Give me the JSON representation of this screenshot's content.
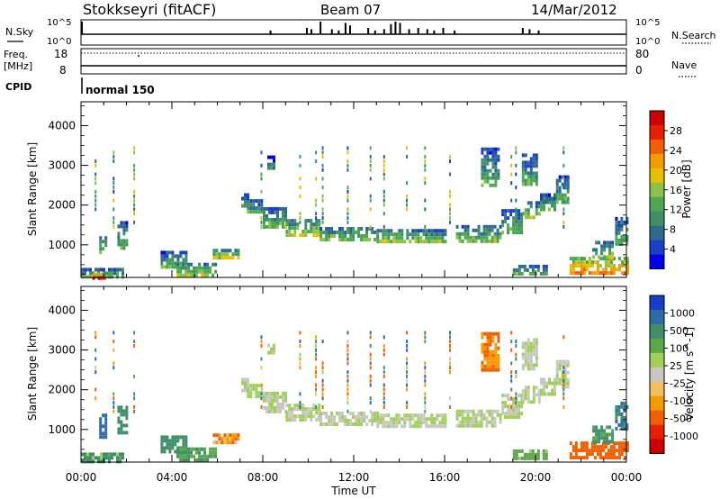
{
  "header": {
    "title": "Stokkseyri (fitACF)",
    "beam": "Beam 07",
    "date": "14/Mar/2012"
  },
  "status_panels": {
    "nsky_label": "N.Sky",
    "nsky_ticks": [
      "10^5",
      "10^0"
    ],
    "nsearch_label": "N.Search",
    "nsearch_ticks": [
      "10^5",
      "10^0"
    ],
    "freq_label": [
      "Freq.",
      "[MHz]"
    ],
    "freq_ticks": [
      "18",
      "8"
    ],
    "nave_label": "Nave",
    "nave_ticks": [
      "80",
      "0"
    ],
    "cpid_label": "CPID",
    "cpid_value": "normal 150",
    "nsky_spikes": [
      [
        0.0,
        1.0
      ],
      [
        9.9,
        0.5
      ],
      [
        10.1,
        0.4
      ],
      [
        10.5,
        1.0
      ],
      [
        11.0,
        0.4
      ],
      [
        11.6,
        0.9
      ],
      [
        11.8,
        0.7
      ],
      [
        12.6,
        0.5
      ],
      [
        13.3,
        0.4
      ],
      [
        13.6,
        0.8
      ],
      [
        13.8,
        1.0
      ],
      [
        14.0,
        0.9
      ],
      [
        14.4,
        0.4
      ],
      [
        14.8,
        0.5
      ],
      [
        15.2,
        0.4
      ],
      [
        15.9,
        0.5
      ],
      [
        16.4,
        0.3
      ],
      [
        19.4,
        0.5
      ],
      [
        19.7,
        0.4
      ],
      [
        20.1,
        0.3
      ],
      [
        8.3,
        0.3
      ],
      [
        11.3,
        0.3
      ],
      [
        12.9,
        0.3
      ],
      [
        15.5,
        0.3
      ]
    ]
  },
  "chart_data": [
    {
      "type": "heatmap",
      "title": "Power",
      "xlabel": "",
      "ylabel": "Slant Range [km]",
      "x_ticks": [
        "00:00",
        "04:00",
        "08:00",
        "12:00",
        "16:00",
        "20:00",
        "00:00"
      ],
      "xlim": [
        0,
        24
      ],
      "ylim": [
        180,
        4600
      ],
      "y_ticks": [
        1000,
        2000,
        3000,
        4000
      ],
      "colorbar": {
        "label": "Power [dB]",
        "ticks": [
          "4",
          "8",
          "12",
          "16",
          "20",
          "24",
          "28"
        ],
        "colors": [
          "#0000e6",
          "#1a40c8",
          "#2e6a8c",
          "#3f8f6a",
          "#4aa84e",
          "#8cc04a",
          "#e6c000",
          "#f59a00",
          "#f06000",
          "#e62000",
          "#cc0000"
        ]
      },
      "regions": [
        {
          "t0": 7.05,
          "t1": 7.3,
          "r0": 1950,
          "r1": 2300,
          "v": 8
        },
        {
          "t0": 7.3,
          "t1": 8.0,
          "r0": 1800,
          "r1": 2150,
          "v": 9
        },
        {
          "t0": 8.0,
          "t1": 9.0,
          "r0": 1450,
          "r1": 1950,
          "v": 10
        },
        {
          "t0": 9.0,
          "t1": 10.5,
          "r0": 1250,
          "r1": 1650,
          "v": 12
        },
        {
          "t0": 10.5,
          "t1": 13.0,
          "r0": 1100,
          "r1": 1450,
          "v": 11
        },
        {
          "t0": 13.0,
          "t1": 15.5,
          "r0": 1050,
          "r1": 1400,
          "v": 12
        },
        {
          "t0": 15.5,
          "t1": 16.0,
          "r0": 1100,
          "r1": 1400,
          "v": 10
        },
        {
          "t0": 16.5,
          "t1": 18.5,
          "r0": 1100,
          "r1": 1500,
          "v": 10
        },
        {
          "t0": 18.5,
          "t1": 19.4,
          "r0": 1300,
          "r1": 1900,
          "v": 9
        },
        {
          "t0": 19.4,
          "t1": 20.2,
          "r0": 1700,
          "r1": 2100,
          "v": 10
        },
        {
          "t0": 20.2,
          "t1": 20.9,
          "r0": 1900,
          "r1": 2300,
          "v": 9
        },
        {
          "t0": 20.9,
          "t1": 21.4,
          "r0": 2100,
          "r1": 2750,
          "v": 8
        },
        {
          "t0": 19.4,
          "t1": 20.0,
          "r0": 2500,
          "r1": 3300,
          "v": 8
        },
        {
          "t0": 17.6,
          "t1": 18.4,
          "r0": 2500,
          "r1": 3450,
          "v": 8
        },
        {
          "t0": 8.2,
          "t1": 8.5,
          "r0": 2900,
          "r1": 3250,
          "v": 6
        },
        {
          "t0": 0.0,
          "t1": 1.9,
          "r0": 180,
          "r1": 420,
          "v": 10
        },
        {
          "t0": 0.5,
          "t1": 1.0,
          "r0": 200,
          "r1": 300,
          "v": 24
        },
        {
          "t0": 0.8,
          "t1": 1.1,
          "r0": 800,
          "r1": 1400,
          "v": 9
        },
        {
          "t0": 1.6,
          "t1": 2.0,
          "r0": 900,
          "r1": 1600,
          "v": 8
        },
        {
          "t0": 3.5,
          "t1": 4.6,
          "r0": 450,
          "r1": 850,
          "v": 9
        },
        {
          "t0": 4.2,
          "t1": 5.9,
          "r0": 200,
          "r1": 550,
          "v": 12
        },
        {
          "t0": 5.8,
          "t1": 6.9,
          "r0": 650,
          "r1": 900,
          "v": 14
        },
        {
          "t0": 19.0,
          "t1": 20.5,
          "r0": 250,
          "r1": 500,
          "v": 9
        },
        {
          "t0": 21.5,
          "t1": 24.0,
          "r0": 300,
          "r1": 700,
          "v": 18
        },
        {
          "t0": 22.5,
          "t1": 23.4,
          "r0": 700,
          "r1": 1100,
          "v": 10
        },
        {
          "t0": 23.5,
          "t1": 24.0,
          "r0": 1000,
          "r1": 1700,
          "v": 9
        }
      ],
      "streaks": [
        0.6,
        1.4,
        2.3,
        7.9,
        9.6,
        10.3,
        10.6,
        11.7,
        12.7,
        13.3,
        14.3,
        15.1,
        16.2,
        18.9,
        19.1,
        21.2
      ]
    },
    {
      "type": "heatmap",
      "title": "Velocity",
      "xlabel": "Time UT",
      "ylabel": "Slant Range [km]",
      "x_ticks": [
        "00:00",
        "04:00",
        "08:00",
        "12:00",
        "16:00",
        "20:00",
        "00:00"
      ],
      "xlim": [
        0,
        24
      ],
      "ylim": [
        180,
        4600
      ],
      "y_ticks": [
        1000,
        2000,
        3000,
        4000
      ],
      "colorbar": {
        "label": "Velocity [m s^-1]",
        "ticks": [
          "1000",
          "500",
          "100",
          "25",
          "-25",
          "-100",
          "-500",
          "-1000"
        ],
        "colors": [
          "#1a3cc8",
          "#2e6aa8",
          "#3f8f6a",
          "#5aa84a",
          "#a0d05a",
          "#c8c8c0",
          "#f0c060",
          "#f59a00",
          "#f06000",
          "#e62000",
          "#cc0000"
        ]
      },
      "regions": [
        {
          "t0": 7.05,
          "t1": 7.3,
          "r0": 1950,
          "r1": 2300,
          "v": 0
        },
        {
          "t0": 7.3,
          "t1": 8.0,
          "r0": 1800,
          "r1": 2150,
          "v": 0
        },
        {
          "t0": 8.0,
          "t1": 9.0,
          "r0": 1450,
          "r1": 1950,
          "v": 0
        },
        {
          "t0": 9.0,
          "t1": 10.5,
          "r0": 1250,
          "r1": 1650,
          "v": 0
        },
        {
          "t0": 10.5,
          "t1": 13.0,
          "r0": 1100,
          "r1": 1450,
          "v": 0
        },
        {
          "t0": 13.0,
          "t1": 15.5,
          "r0": 1050,
          "r1": 1400,
          "v": 0
        },
        {
          "t0": 15.5,
          "t1": 16.0,
          "r0": 1100,
          "r1": 1400,
          "v": 0
        },
        {
          "t0": 16.5,
          "t1": 18.5,
          "r0": 1100,
          "r1": 1500,
          "v": 0
        },
        {
          "t0": 18.5,
          "t1": 19.4,
          "r0": 1300,
          "r1": 1900,
          "v": 0
        },
        {
          "t0": 19.4,
          "t1": 20.2,
          "r0": 1700,
          "r1": 2100,
          "v": 0
        },
        {
          "t0": 20.2,
          "t1": 20.9,
          "r0": 1900,
          "r1": 2300,
          "v": 0
        },
        {
          "t0": 20.9,
          "t1": 21.4,
          "r0": 2100,
          "r1": 2750,
          "v": 0
        },
        {
          "t0": 19.4,
          "t1": 20.0,
          "r0": 2500,
          "r1": 3300,
          "v": 0
        },
        {
          "t0": 17.6,
          "t1": 18.4,
          "r0": 2500,
          "r1": 3450,
          "v": -200
        },
        {
          "t0": 8.2,
          "t1": 8.5,
          "r0": 2900,
          "r1": 3250,
          "v": 0
        },
        {
          "t0": 0.0,
          "t1": 1.9,
          "r0": 180,
          "r1": 420,
          "v": 150
        },
        {
          "t0": 0.8,
          "t1": 1.1,
          "r0": 800,
          "r1": 1400,
          "v": 600
        },
        {
          "t0": 1.6,
          "t1": 2.0,
          "r0": 900,
          "r1": 1600,
          "v": 100
        },
        {
          "t0": 3.5,
          "t1": 4.6,
          "r0": 450,
          "r1": 850,
          "v": 80
        },
        {
          "t0": 4.2,
          "t1": 5.9,
          "r0": 200,
          "r1": 550,
          "v": 60
        },
        {
          "t0": 5.8,
          "t1": 6.9,
          "r0": 650,
          "r1": 900,
          "v": -150
        },
        {
          "t0": 19.0,
          "t1": 20.5,
          "r0": 250,
          "r1": 500,
          "v": 40
        },
        {
          "t0": 21.5,
          "t1": 24.0,
          "r0": 300,
          "r1": 700,
          "v": -400
        },
        {
          "t0": 22.5,
          "t1": 23.4,
          "r0": 700,
          "r1": 1100,
          "v": 60
        },
        {
          "t0": 23.5,
          "t1": 24.0,
          "r0": 1000,
          "r1": 1700,
          "v": 300
        }
      ],
      "streaks": [
        0.6,
        1.4,
        2.3,
        7.9,
        9.6,
        10.3,
        10.6,
        11.7,
        12.7,
        13.3,
        14.3,
        15.1,
        16.2,
        18.9,
        19.1,
        21.2
      ]
    }
  ]
}
